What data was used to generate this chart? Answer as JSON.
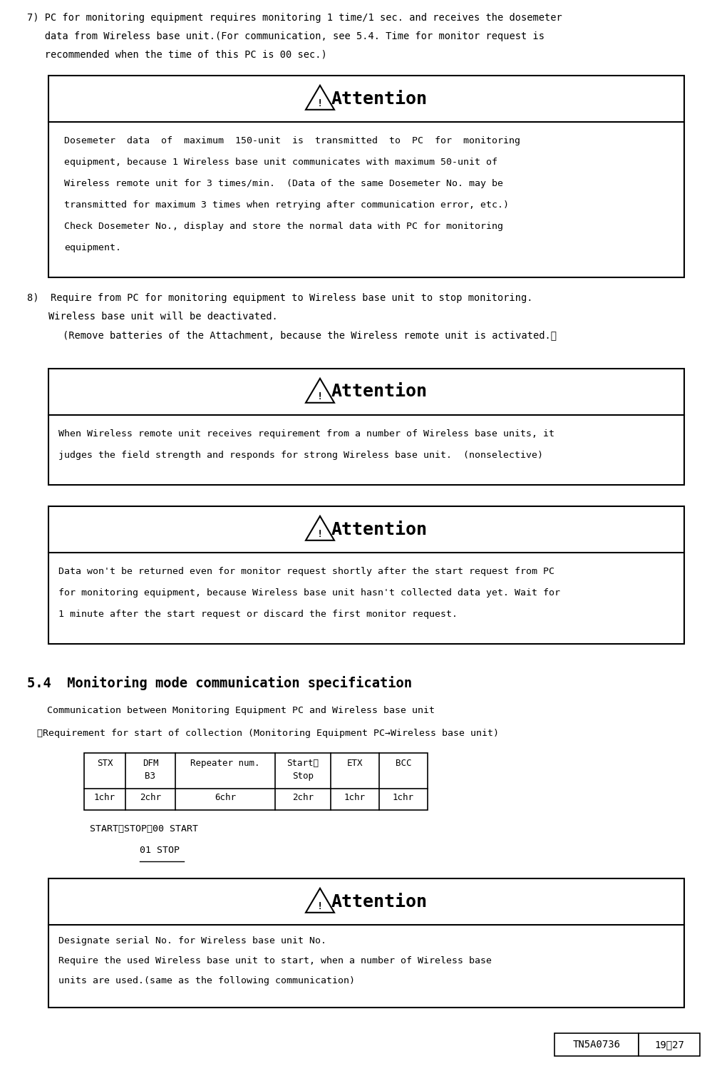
{
  "page_width": 9.92,
  "page_height": 14.95,
  "bg_color": "#ffffff",
  "item7_lines": [
    "7) PC for monitoring equipment requires monitoring 1 time/1 sec. and receives the dosemeter",
    "   data from Wireless base unit.(For communication, see 5.4. Time for monitor request is",
    "   recommended when the time of this PC is 00 sec.)"
  ],
  "attn1_body": [
    "Dosemeter  data  of  maximum  150-unit  is  transmitted  to  PC  for  monitoring",
    "equipment, because 1 Wireless base unit communicates with maximum 50-unit of",
    "Wireless remote unit for 3 times/min.  (Data of the same Dosemeter No. may be",
    "transmitted for maximum 3 times when retrying after communication error, etc.)",
    "Check Dosemeter No., display and store the normal data with PC for monitoring",
    "equipment."
  ],
  "item8_lines": [
    "8)  Require from PC for monitoring equipment to Wireless base unit to stop monitoring.",
    "    Wireless base unit will be deactivated.",
    "      (Remove batteries of the Attachment, because the Wireless remote unit is activated.）"
  ],
  "attn2_body": [
    "When Wireless remote unit receives requirement from a number of Wireless base units, it",
    "judges the field strength and responds for strong Wireless base unit.  (nonselective)"
  ],
  "attn3_body": [
    "Data won't be returned even for monitor request shortly after the start request from PC",
    "for monitoring equipment, because Wireless base unit hasn't collected data yet. Wait for",
    "1 minute after the start request or discard the first monitor request."
  ],
  "section_title": "5.4  Monitoring mode communication specification",
  "comm_line1": "Communication between Monitoring Equipment PC and Wireless base unit",
  "comm_line2": "・Requirement for start of collection (Monitoring Equipment PC→Wireless base unit)",
  "table_col_labels_r1": [
    "STX",
    "DFM",
    "Repeater num.",
    "Start／",
    "ETX",
    "BCC"
  ],
  "table_col_labels_r2": [
    "",
    "B3",
    "",
    "Stop",
    "",
    ""
  ],
  "table_data_row": [
    "1chr",
    "2chr",
    "6chr",
    "2chr",
    "1chr",
    "1chr"
  ],
  "start_stop_line1": "START／STOP：00 START",
  "start_stop_line2": "01 STOP",
  "attn4_body": [
    "Designate serial No. for Wireless base unit No.",
    "Require the used Wireless base unit to start, when a number of Wireless base",
    "units are used.(same as the following communication)"
  ],
  "footer_left": "TN5A0736",
  "footer_right": "19／27"
}
